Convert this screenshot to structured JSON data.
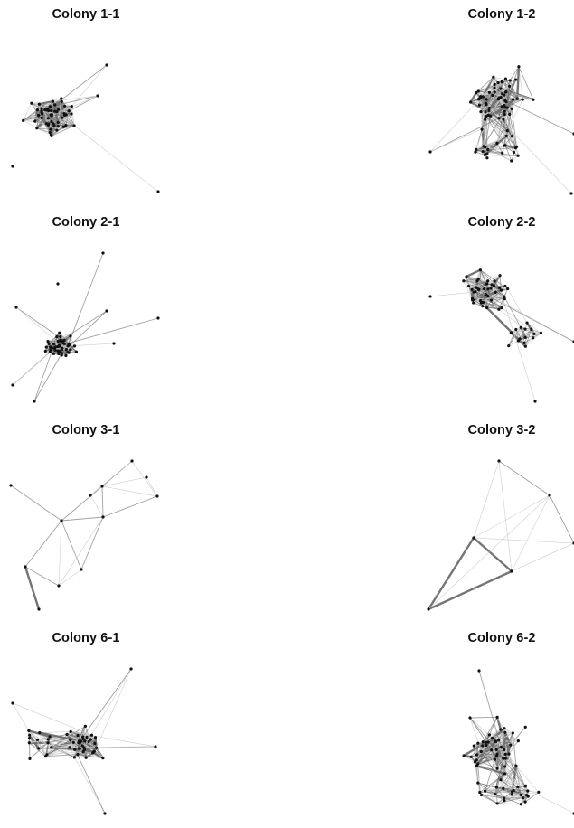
{
  "panels": [
    {
      "id": "c11",
      "title": "Colony 1-1"
    },
    {
      "id": "c12",
      "title": "Colony 1-2"
    },
    {
      "id": "c21",
      "title": "Colony 2-1"
    },
    {
      "id": "c22",
      "title": "Colony 2-2"
    },
    {
      "id": "c31",
      "title": "Colony 3-1"
    },
    {
      "id": "c32",
      "title": "Colony 3-2"
    },
    {
      "id": "c61",
      "title": "Colony 6-1"
    },
    {
      "id": "c62",
      "title": "Colony 6-2"
    }
  ],
  "colors": {
    "node": "#111111",
    "edge_light": "#cfcfcf",
    "edge_dark": "#6e6e6e",
    "title": "#111111"
  }
}
